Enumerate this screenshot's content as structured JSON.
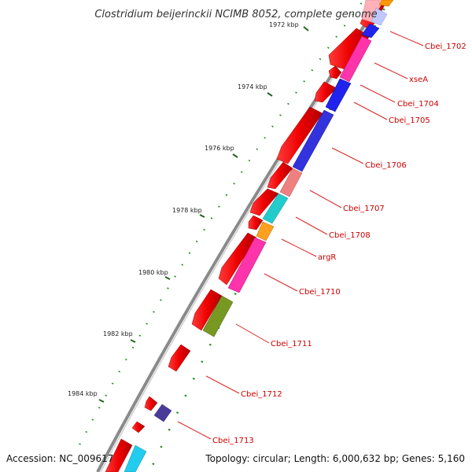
{
  "title": "Clostridium beijerinckii NCIMB 8052, complete genome",
  "footer": {
    "accession": "Accession: NC_009617",
    "stats": "Topology: circular; Length: 6,000,632 bp; Genes: 5,160"
  },
  "scale": {
    "unit": "kbp",
    "ticks": [
      {
        "pos_kbp": 1972,
        "label": "1972 kbp"
      },
      {
        "pos_kbp": 1974,
        "label": "1974 kbp"
      },
      {
        "pos_kbp": 1976,
        "label": "1976 kbp"
      },
      {
        "pos_kbp": 1978,
        "label": "1978 kbp"
      },
      {
        "pos_kbp": 1980,
        "label": "1980 kbp"
      },
      {
        "pos_kbp": 1982,
        "label": "1982 kbp"
      },
      {
        "pos_kbp": 1984,
        "label": "1984 kbp"
      }
    ]
  },
  "genes": [
    {
      "label": "Cbei_1702"
    },
    {
      "label": "xseA"
    },
    {
      "label": "Cbei_1704"
    },
    {
      "label": "Cbei_1705"
    },
    {
      "label": "Cbei_1706"
    },
    {
      "label": "Cbei_1707"
    },
    {
      "label": "Cbei_1708"
    },
    {
      "label": "argR"
    },
    {
      "label": "Cbei_1710"
    },
    {
      "label": "Cbei_1711"
    },
    {
      "label": "Cbei_1712"
    },
    {
      "label": "Cbei_1713"
    }
  ],
  "colors": {
    "backbone": "#999999",
    "forward_strand": "#ff0000",
    "label": "#cc0000",
    "tick_minor": "#118811",
    "tick_major": "#226622"
  }
}
